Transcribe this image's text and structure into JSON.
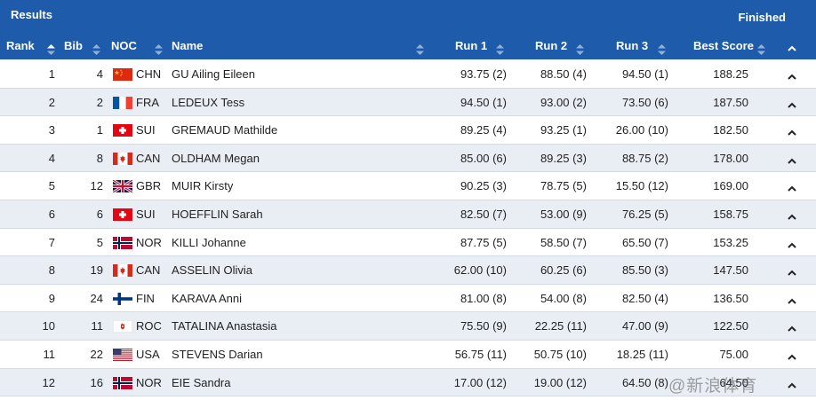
{
  "header": {
    "title": "Results",
    "status": "Finished",
    "columns": {
      "rank": "Rank",
      "bib": "Bib",
      "noc": "NOC",
      "name": "Name",
      "run1": "Run 1",
      "run2": "Run 2",
      "run3": "Run 3",
      "best": "Best Score"
    }
  },
  "rows": [
    {
      "rank": "1",
      "bib": "4",
      "noc": "CHN",
      "name": "GU Ailing Eileen",
      "run1": "93.75 (2)",
      "run2": "88.50 (4)",
      "run3": "94.50 (1)",
      "best": "188.25"
    },
    {
      "rank": "2",
      "bib": "2",
      "noc": "FRA",
      "name": "LEDEUX Tess",
      "run1": "94.50 (1)",
      "run2": "93.00 (2)",
      "run3": "73.50 (6)",
      "best": "187.50"
    },
    {
      "rank": "3",
      "bib": "1",
      "noc": "SUI",
      "name": "GREMAUD Mathilde",
      "run1": "89.25 (4)",
      "run2": "93.25 (1)",
      "run3": "26.00 (10)",
      "best": "182.50"
    },
    {
      "rank": "4",
      "bib": "8",
      "noc": "CAN",
      "name": "OLDHAM Megan",
      "run1": "85.00 (6)",
      "run2": "89.25 (3)",
      "run3": "88.75 (2)",
      "best": "178.00"
    },
    {
      "rank": "5",
      "bib": "12",
      "noc": "GBR",
      "name": "MUIR Kirsty",
      "run1": "90.25 (3)",
      "run2": "78.75 (5)",
      "run3": "15.50 (12)",
      "best": "169.00"
    },
    {
      "rank": "6",
      "bib": "6",
      "noc": "SUI",
      "name": "HOEFFLIN Sarah",
      "run1": "82.50 (7)",
      "run2": "53.00 (9)",
      "run3": "76.25 (5)",
      "best": "158.75"
    },
    {
      "rank": "7",
      "bib": "5",
      "noc": "NOR",
      "name": "KILLI Johanne",
      "run1": "87.75 (5)",
      "run2": "58.50 (7)",
      "run3": "65.50 (7)",
      "best": "153.25"
    },
    {
      "rank": "8",
      "bib": "19",
      "noc": "CAN",
      "name": "ASSELIN Olivia",
      "run1": "62.00 (10)",
      "run2": "60.25 (6)",
      "run3": "85.50 (3)",
      "best": "147.50"
    },
    {
      "rank": "9",
      "bib": "24",
      "noc": "FIN",
      "name": "KARAVA Anni",
      "run1": "81.00 (8)",
      "run2": "54.00 (8)",
      "run3": "82.50 (4)",
      "best": "136.50"
    },
    {
      "rank": "10",
      "bib": "11",
      "noc": "ROC",
      "name": "TATALINA Anastasia",
      "run1": "75.50 (9)",
      "run2": "22.25 (11)",
      "run3": "47.00 (9)",
      "best": "122.50"
    },
    {
      "rank": "11",
      "bib": "22",
      "noc": "USA",
      "name": "STEVENS Darian",
      "run1": "56.75 (11)",
      "run2": "50.75 (10)",
      "run3": "18.25 (11)",
      "best": "75.00"
    },
    {
      "rank": "12",
      "bib": "16",
      "noc": "NOR",
      "name": "EIE Sandra",
      "run1": "17.00 (12)",
      "run2": "19.00 (12)",
      "run3": "64.50 (8)",
      "best": "64.50"
    }
  ],
  "watermark": "@新浪体育",
  "colors": {
    "header_bg": "#1e5bab",
    "alt_row": "#e9eef5",
    "sort_arrow": "#8fb0dc"
  },
  "icons": {
    "sort": "sort-arrows-icon",
    "expand": "caret-up-icon"
  }
}
